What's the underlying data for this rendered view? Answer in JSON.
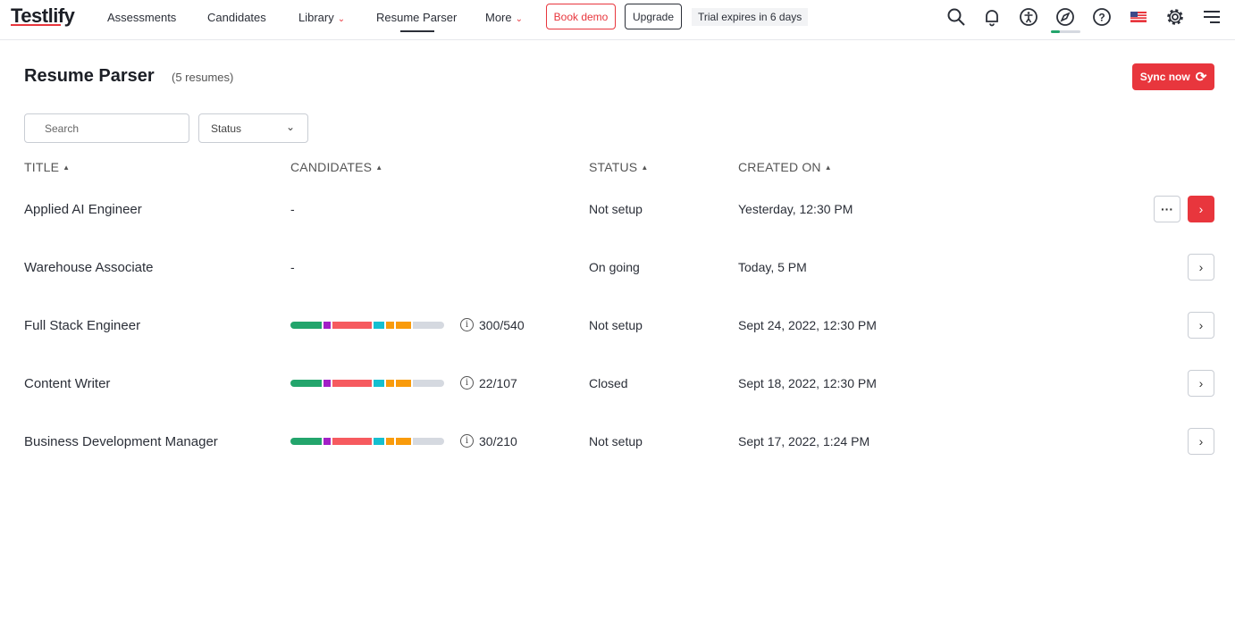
{
  "nav": {
    "logo": "Testlify",
    "items": [
      "Assessments",
      "Candidates",
      "Library",
      "Resume Parser",
      "More"
    ],
    "book_demo": "Book demo",
    "upgrade": "Upgrade",
    "trial": "Trial expires in 6 days",
    "onboarding_progress": 0.3
  },
  "page": {
    "title": "Resume Parser",
    "count": "(5 resumes)",
    "sync": "Sync now"
  },
  "filters": {
    "search_placeholder": "Search",
    "status": "Status"
  },
  "columns": [
    "TITLE",
    "CANDIDATES",
    "STATUS",
    "CREATED ON"
  ],
  "segment_colors": [
    "#23a56c",
    "#a21fc6",
    "#f65a5f",
    "#14bfd0",
    "#f99b0b",
    "#f99b0b",
    "#d5d9e0"
  ],
  "rows": [
    {
      "title": "Applied AI Engineer",
      "candidates": "-",
      "status": "Not setup",
      "created": "Yesterday, 12:30 PM",
      "has_menu": true,
      "primary": true
    },
    {
      "title": "Warehouse Associate",
      "candidates": "-",
      "status": "On going",
      "created": "Today, 5 PM"
    },
    {
      "title": "Full Stack Engineer",
      "ratio": "300/540",
      "status": "Not setup",
      "created": "Sept 24, 2022, 12:30 PM",
      "segments": [
        0.2,
        0.05,
        0.25,
        0.075,
        0.05,
        0.1,
        0.2
      ]
    },
    {
      "title": "Content Writer",
      "ratio": "22/107",
      "status": "Closed",
      "created": "Sept 18, 2022, 12:30 PM",
      "segments": [
        0.2,
        0.05,
        0.25,
        0.075,
        0.05,
        0.1,
        0.2
      ]
    },
    {
      "title": "Business Development Manager",
      "ratio": "30/210",
      "status": "Not setup",
      "created": "Sept 17, 2022, 1:24 PM",
      "segments": [
        0.2,
        0.05,
        0.25,
        0.075,
        0.05,
        0.1,
        0.2
      ]
    }
  ]
}
